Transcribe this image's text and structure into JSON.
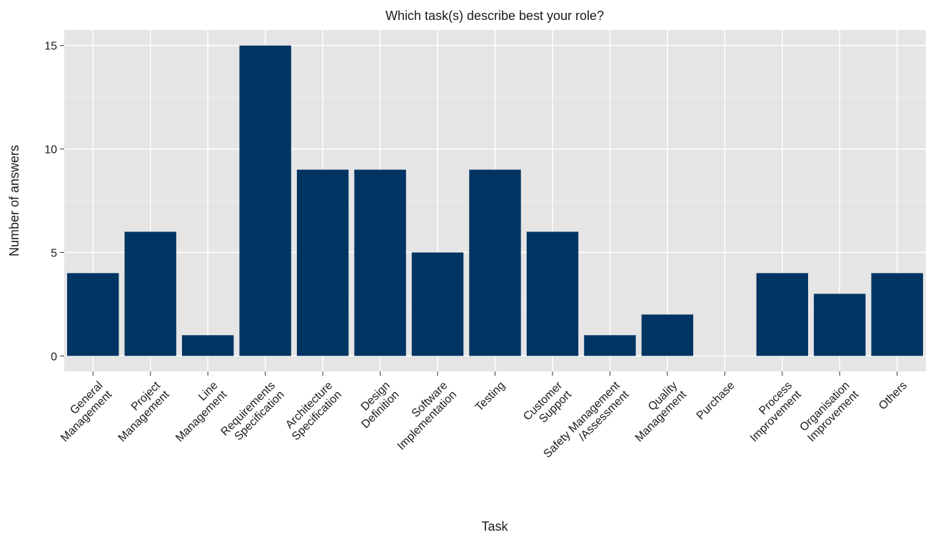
{
  "chart_data": {
    "type": "bar",
    "title": "Which task(s) describe best your role?",
    "x_label": "Task",
    "y_label": "Number of answers",
    "categories": [
      "General\nManagement",
      "Project\nManagement",
      "Line\nManagement",
      "Requirements\nSpecification",
      "Architecture\nSpecification",
      "Design\nDefinition",
      "Software\nImplementation",
      "Testing",
      "Customer\nSupport",
      "Safety Management\n/Assessment",
      "Quality\nManagement",
      "Purchase",
      "Process\nImprovement",
      "Organisation\nImprovement",
      "Others"
    ],
    "values": [
      4,
      6,
      1,
      15,
      9,
      9,
      5,
      9,
      6,
      1,
      2,
      0,
      4,
      3,
      4
    ],
    "color": "#003462",
    "ylim": [
      -0.75,
      15.75
    ],
    "yticks": [
      0,
      5,
      10,
      15
    ],
    "minor_yticks": [
      2.5,
      7.5,
      12.5
    ],
    "grid": true
  }
}
